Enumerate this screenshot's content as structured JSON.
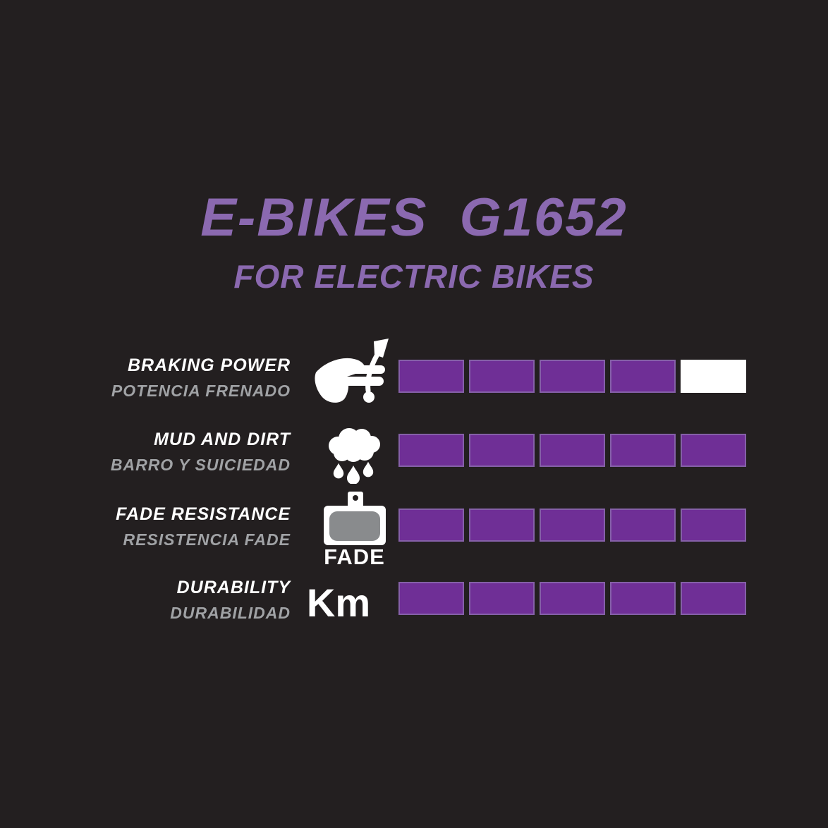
{
  "header": {
    "title": "E-BIKES G1652",
    "subtitle": "FOR ELECTRIC BIKES"
  },
  "rows": [
    {
      "label_en": "BRAKING POWER",
      "label_es": "POTENCIA FRENADO",
      "icon": "brake-lever-hand-icon",
      "rating": 4,
      "max": 5
    },
    {
      "label_en": "MUD AND DIRT",
      "label_es": "BARRO Y SUICIEDAD",
      "icon": "rain-cloud-icon",
      "rating": 5,
      "max": 5
    },
    {
      "label_en": "FADE RESISTANCE",
      "label_es": "RESISTENCIA FADE",
      "icon": "brake-pad-icon",
      "icon_caption": "FADE",
      "rating": 5,
      "max": 5
    },
    {
      "label_en": "DURABILITY",
      "label_es": "DURABILIDAD",
      "icon": "km-text-icon",
      "icon_text": "Km",
      "rating": 5,
      "max": 5
    }
  ],
  "colors": {
    "background": "#231f20",
    "accent_purple_text": "#8b69b0",
    "bar_fill_purple": "#6f2f96",
    "bar_border_purple": "#8560a8",
    "bar_empty_white": "#ffffff",
    "label_primary": "#ffffff",
    "label_secondary": "#a0a2a5",
    "pad_gray": "#898b8d"
  },
  "chart_data": {
    "type": "bar",
    "title": "E-BIKES G1652",
    "subtitle": "FOR ELECTRIC BIKES",
    "categories": [
      "BRAKING POWER",
      "MUD AND DIRT",
      "FADE RESISTANCE",
      "DURABILITY"
    ],
    "categories_es": [
      "POTENCIA FRENADO",
      "BARRO Y SUICIEDAD",
      "RESISTENCIA FADE",
      "DURABILIDAD"
    ],
    "values": [
      4,
      5,
      5,
      5
    ],
    "value_range": [
      0,
      5
    ],
    "segments_per_bar": 5,
    "orientation": "horizontal",
    "legend_position": "none",
    "grid": false,
    "note": "Segmented rating bars: filled segments purple, unfilled segment white"
  }
}
